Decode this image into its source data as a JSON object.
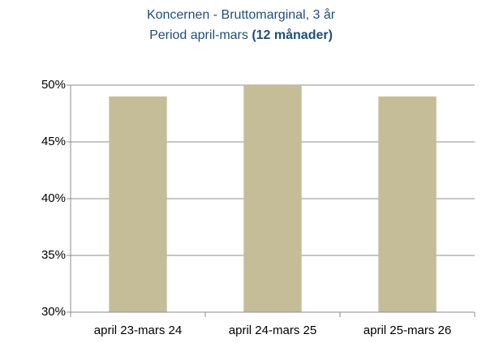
{
  "chart_data": {
    "type": "bar",
    "title": "Koncernen - Bruttomarginal, 3 år",
    "subtitle": "Period april-mars",
    "subtitle_bold": "(12 månader)",
    "categories": [
      "april 23-mars 24",
      "april 24-mars 25",
      "april 25-mars 26"
    ],
    "values": [
      49,
      50,
      49
    ],
    "color": "#c4bd97",
    "ylim": [
      30,
      50
    ],
    "yticks": [
      {
        "value": 30,
        "label": "30%"
      },
      {
        "value": 35,
        "label": "35%"
      },
      {
        "value": 40,
        "label": "40%"
      },
      {
        "value": 45,
        "label": "45%"
      },
      {
        "value": 50,
        "label": "50%"
      }
    ],
    "grid": true
  }
}
